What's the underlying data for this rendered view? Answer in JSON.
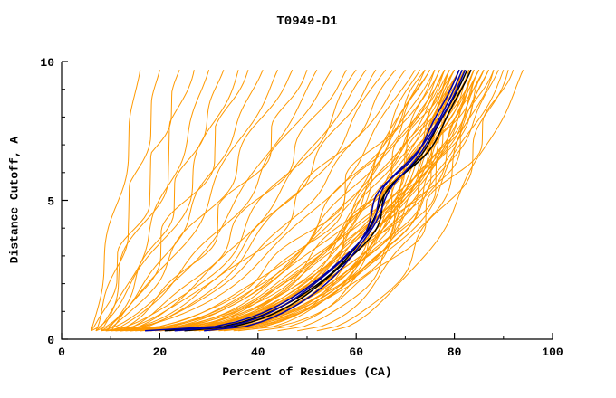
{
  "chart_data": {
    "type": "line",
    "title": "T0949-D1",
    "xlabel": "Percent of Residues (CA)",
    "ylabel": "Distance Cutoff, A",
    "xlim": [
      0,
      100
    ],
    "ylim": [
      0,
      10
    ],
    "xticks": [
      0,
      20,
      40,
      60,
      80,
      100
    ],
    "xticks_minor": [
      10,
      30,
      50,
      70,
      90
    ],
    "yticks": [
      0,
      5,
      10
    ],
    "yticks_minor": [
      1,
      2,
      3,
      4,
      6,
      7,
      8,
      9
    ],
    "grid": false,
    "legend": "none",
    "curve_y_range": [
      0.3,
      9.7
    ],
    "colors": {
      "model_curves": "#ff9900",
      "highlight_black": "#000000",
      "highlight_blue": "#0000a8",
      "axis": "#000000",
      "background": "#ffffff"
    },
    "model_curves_note": "each curve = [percent_at_cutoff_0.3A, percent_at_cutoff_9.7A, shape_exponent q]; x(y)=x0+(x1-x0)*t^q, t normalized cutoff",
    "model_curves": [
      [
        6,
        16,
        0.9
      ],
      [
        7,
        20,
        0.85
      ],
      [
        6,
        24,
        0.8
      ],
      [
        8,
        27,
        0.9
      ],
      [
        7,
        30,
        0.75
      ],
      [
        9,
        33,
        0.8
      ],
      [
        6,
        36,
        0.7
      ],
      [
        10,
        38,
        0.85
      ],
      [
        8,
        41,
        0.75
      ],
      [
        7,
        44,
        0.7
      ],
      [
        9,
        47,
        0.8
      ],
      [
        11,
        50,
        0.7
      ],
      [
        8,
        52,
        0.65
      ],
      [
        10,
        55,
        0.75
      ],
      [
        12,
        58,
        0.7
      ],
      [
        9,
        60,
        0.6
      ],
      [
        13,
        62,
        0.7
      ],
      [
        10,
        64,
        0.6
      ],
      [
        14,
        66,
        0.65
      ],
      [
        11,
        68,
        0.6
      ],
      [
        12,
        70,
        0.6
      ],
      [
        8,
        72,
        0.5
      ],
      [
        10,
        73,
        0.45
      ],
      [
        12,
        74,
        0.5
      ],
      [
        9,
        74,
        0.4
      ],
      [
        15,
        75,
        0.5
      ],
      [
        11,
        75,
        0.45
      ],
      [
        13,
        76,
        0.42
      ],
      [
        16,
        76,
        0.5
      ],
      [
        9,
        77,
        0.38
      ],
      [
        18,
        77,
        0.45
      ],
      [
        12,
        78,
        0.4
      ],
      [
        20,
        78,
        0.48
      ],
      [
        14,
        78,
        0.42
      ],
      [
        10,
        79,
        0.36
      ],
      [
        22,
        79,
        0.45
      ],
      [
        16,
        79,
        0.4
      ],
      [
        12,
        80,
        0.38
      ],
      [
        25,
        80,
        0.45
      ],
      [
        18,
        80,
        0.42
      ],
      [
        14,
        80,
        0.36
      ],
      [
        11,
        81,
        0.34
      ],
      [
        28,
        81,
        0.44
      ],
      [
        20,
        81,
        0.4
      ],
      [
        15,
        81,
        0.37
      ],
      [
        13,
        82,
        0.35
      ],
      [
        30,
        82,
        0.45
      ],
      [
        22,
        82,
        0.4
      ],
      [
        17,
        82,
        0.36
      ],
      [
        12,
        83,
        0.33
      ],
      [
        33,
        83,
        0.44
      ],
      [
        24,
        83,
        0.4
      ],
      [
        19,
        83,
        0.36
      ],
      [
        14,
        84,
        0.34
      ],
      [
        36,
        84,
        0.46
      ],
      [
        26,
        84,
        0.4
      ],
      [
        21,
        84,
        0.37
      ],
      [
        16,
        85,
        0.34
      ],
      [
        40,
        85,
        0.48
      ],
      [
        28,
        85,
        0.42
      ],
      [
        23,
        85,
        0.38
      ],
      [
        18,
        86,
        0.35
      ],
      [
        44,
        86,
        0.5
      ],
      [
        30,
        86,
        0.42
      ],
      [
        25,
        87,
        0.38
      ],
      [
        20,
        87,
        0.35
      ],
      [
        48,
        88,
        0.52
      ],
      [
        32,
        88,
        0.44
      ],
      [
        27,
        89,
        0.4
      ],
      [
        22,
        90,
        0.36
      ],
      [
        52,
        91,
        0.55
      ],
      [
        35,
        92,
        0.45
      ],
      [
        55,
        94,
        0.6
      ]
    ],
    "highlight_curves": [
      {
        "color": "#000000",
        "x0": 21,
        "x1": 82.6,
        "q": 0.4
      },
      {
        "color": "#000000",
        "x0": 25,
        "x1": 83.4,
        "q": 0.43
      },
      {
        "color": "#0000a8",
        "x0": 17,
        "x1": 81.6,
        "q": 0.37
      },
      {
        "color": "#0000a8",
        "x0": 29,
        "x1": 82.2,
        "q": 0.45
      },
      {
        "color": "#0000a8",
        "x0": 23,
        "x1": 81.0,
        "q": 0.41
      }
    ]
  }
}
